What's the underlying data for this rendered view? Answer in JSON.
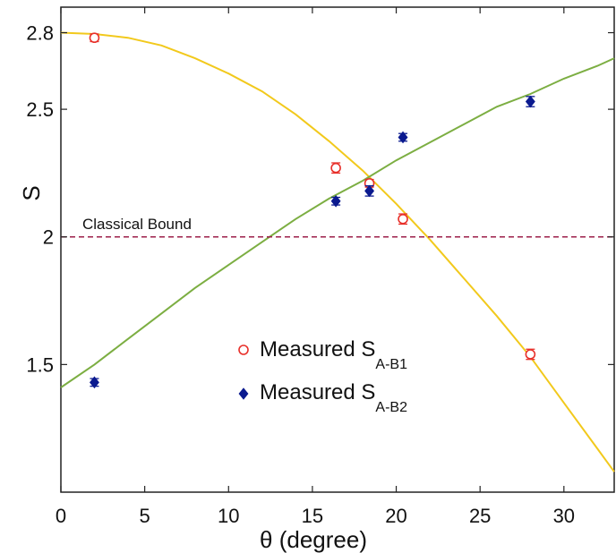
{
  "chart_data": {
    "type": "scatter",
    "title": "",
    "xlabel": "θ (degree)",
    "ylabel": "S",
    "xlim": [
      0,
      33
    ],
    "ylim": [
      1.0,
      2.9
    ],
    "xticks": [
      0,
      5,
      10,
      15,
      20,
      25,
      30
    ],
    "yticks": [
      1.5,
      2,
      2.5,
      2.8
    ],
    "ytick_labels": [
      "1.5",
      "2",
      "2.5",
      "2.8"
    ],
    "grid": false,
    "legend_position": "center",
    "series": [
      {
        "name_main": "Measured S",
        "name_sub": "A-B1",
        "marker": "open-circle",
        "color": "#e8302a",
        "x": [
          2.0,
          16.4,
          18.4,
          20.4,
          28.0
        ],
        "y": [
          2.78,
          2.27,
          2.21,
          2.07,
          1.54
        ],
        "err": [
          0.015,
          0.02,
          0.015,
          0.02,
          0.02
        ]
      },
      {
        "name_main": "Measured S",
        "name_sub": "A-B2",
        "marker": "filled-diamond",
        "color": "#0b1a8f",
        "x": [
          2.0,
          16.4,
          18.4,
          20.4,
          28.0
        ],
        "y": [
          1.43,
          2.14,
          2.18,
          2.39,
          2.53
        ],
        "err": [
          0.015,
          0.015,
          0.02,
          0.015,
          0.02
        ]
      }
    ],
    "curves": [
      {
        "id": "theory-ab1",
        "color": "#f2c91c",
        "x": [
          0,
          2,
          4,
          6,
          8,
          10,
          12,
          14,
          16,
          18,
          20,
          22,
          24,
          26,
          28,
          30,
          32,
          33
        ],
        "y": [
          2.8,
          2.795,
          2.78,
          2.75,
          2.7,
          2.64,
          2.57,
          2.48,
          2.375,
          2.26,
          2.13,
          1.99,
          1.84,
          1.69,
          1.53,
          1.35,
          1.17,
          1.08
        ]
      },
      {
        "id": "theory-ab2",
        "color": "#7cae42",
        "x": [
          0,
          2,
          4,
          6,
          8,
          10,
          12,
          14,
          16,
          18,
          20,
          22,
          24,
          26,
          28,
          30,
          32,
          33
        ],
        "y": [
          1.41,
          1.5,
          1.6,
          1.7,
          1.8,
          1.89,
          1.98,
          2.07,
          2.15,
          2.22,
          2.3,
          2.37,
          2.44,
          2.51,
          2.56,
          2.62,
          2.67,
          2.7
        ]
      }
    ],
    "reference_line": {
      "y": 2.0,
      "color": "#9c1f4a",
      "style": "dashed",
      "label": "Classical Bound"
    }
  }
}
